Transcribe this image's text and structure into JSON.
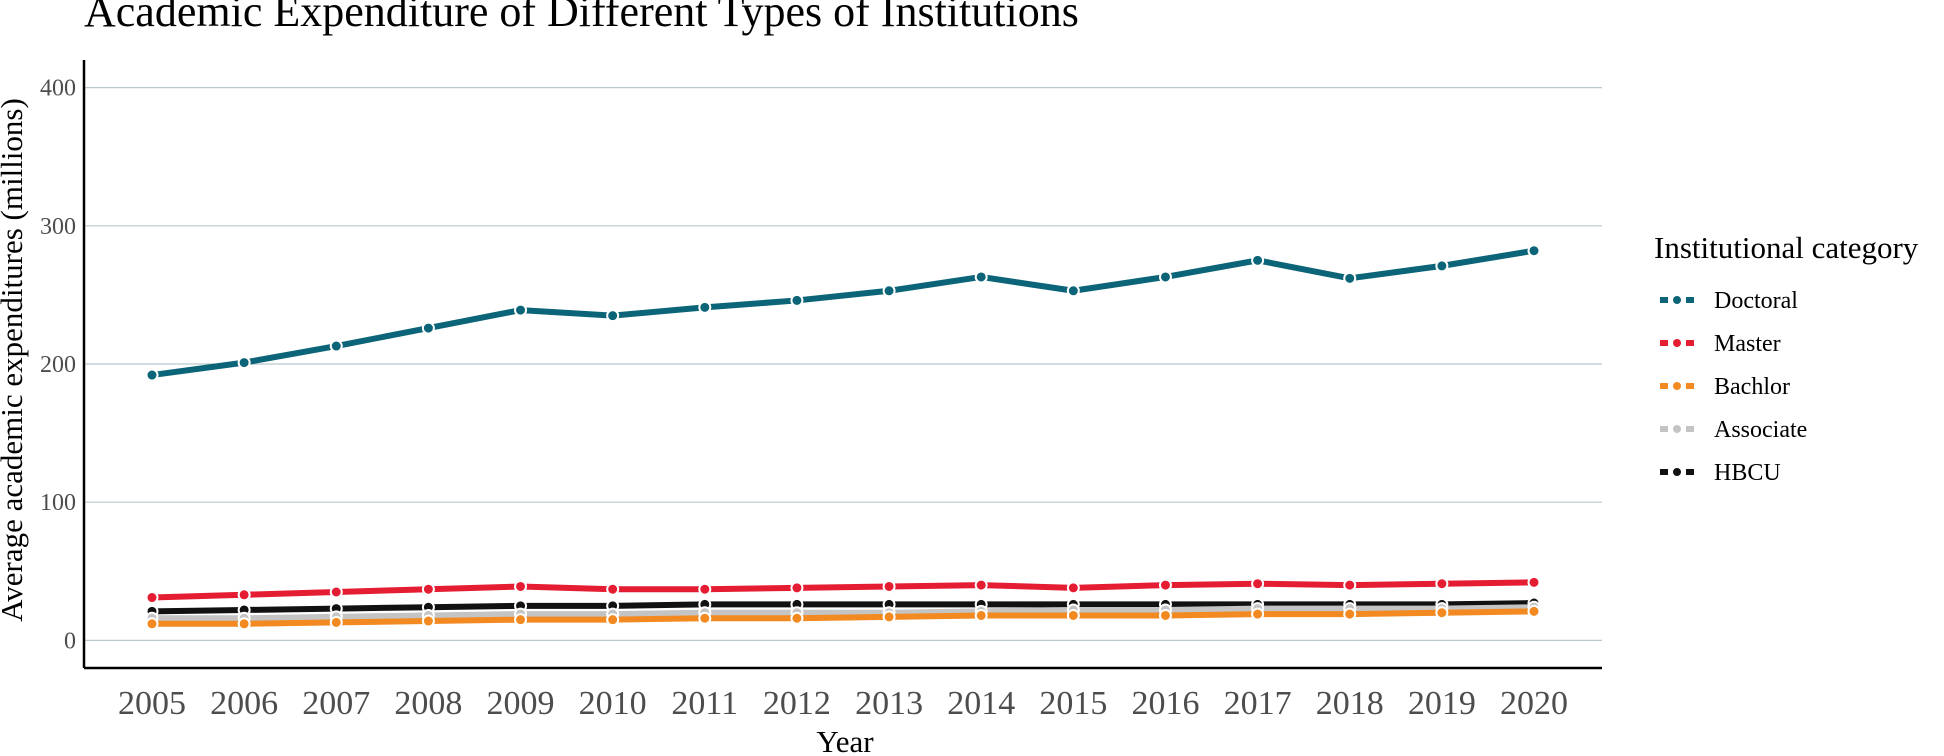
{
  "chart_data": {
    "type": "line",
    "title": "Academic Expenditure of Different Types of Institutions",
    "xlabel": "Year",
    "ylabel": "Average academic expenditures (millions)",
    "x": [
      2005,
      2006,
      2007,
      2008,
      2009,
      2010,
      2011,
      2012,
      2013,
      2014,
      2015,
      2016,
      2017,
      2018,
      2019,
      2020
    ],
    "ylim": [
      -20,
      420
    ],
    "yticks": [
      0,
      100,
      200,
      300,
      400
    ],
    "grid": "horizontal major",
    "legend": {
      "title": "Institutional category",
      "position": "right"
    },
    "series": [
      {
        "name": "Doctoral",
        "color": "#0b6477",
        "values": [
          192,
          201,
          213,
          226,
          239,
          235,
          241,
          246,
          253,
          263,
          253,
          263,
          275,
          262,
          271,
          282
        ]
      },
      {
        "name": "Master",
        "color": "#e41d32",
        "values": [
          31,
          33,
          35,
          37,
          39,
          37,
          37,
          38,
          39,
          40,
          38,
          40,
          41,
          40,
          41,
          42
        ]
      },
      {
        "name": "Bachlor",
        "color": "#f28a21",
        "values": [
          12,
          12,
          13,
          14,
          15,
          15,
          16,
          16,
          17,
          18,
          18,
          18,
          19,
          19,
          20,
          21
        ]
      },
      {
        "name": "Associate",
        "color": "#c4c4c4",
        "values": [
          16,
          16,
          17,
          18,
          19,
          19,
          20,
          20,
          20,
          21,
          22,
          22,
          23,
          23,
          23,
          24
        ]
      },
      {
        "name": "HBCU",
        "color": "#111111",
        "values": [
          21,
          22,
          23,
          24,
          25,
          25,
          26,
          26,
          26,
          26,
          26,
          26,
          26,
          26,
          26,
          27
        ]
      }
    ]
  }
}
